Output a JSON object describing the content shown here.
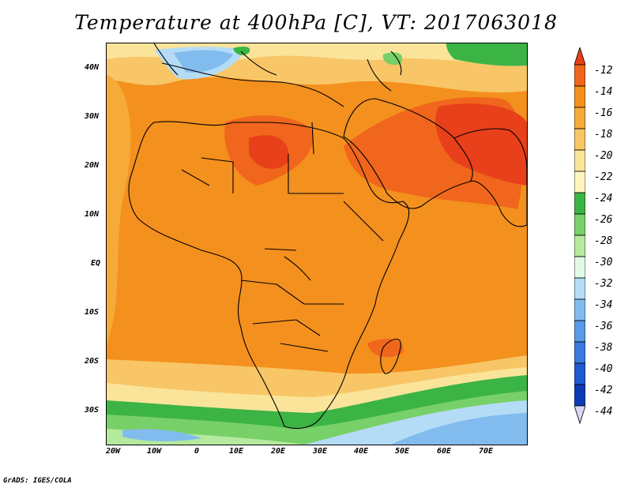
{
  "title": "Temperature at 400hPa [C], VT: 2017063018",
  "footer": "GrADS: IGES/COLA",
  "map": {
    "projection": "latlon",
    "lon_range": [
      -22,
      80
    ],
    "lat_range": [
      -37,
      45
    ],
    "lon_ticks": [
      "20W",
      "10W",
      "0",
      "10E",
      "20E",
      "30E",
      "40E",
      "50E",
      "60E",
      "70E"
    ],
    "lat_ticks": [
      "40N",
      "30N",
      "20N",
      "10N",
      "EQ",
      "10S",
      "20S",
      "30S"
    ]
  },
  "colorbar": {
    "levels": [
      "-12",
      "-14",
      "-16",
      "-18",
      "-20",
      "-22",
      "-24",
      "-26",
      "-28",
      "-30",
      "-32",
      "-34",
      "-36",
      "-38",
      "-40",
      "-42",
      "-44"
    ],
    "colors": [
      "#e8401a",
      "#f0661c",
      "#f4901e",
      "#f6aa38",
      "#f8c666",
      "#fae49a",
      "#fff5c0",
      "#3cb445",
      "#78d068",
      "#b4ea9e",
      "#e0fae6",
      "#b4dcf6",
      "#82bcee",
      "#5a9ae6",
      "#3a7ade",
      "#1e5ad0",
      "#0c3cb4",
      "#0a148c"
    ],
    "top_arrow_color": "#e8401a",
    "bottom_arrow_color": "#d8d8f4"
  }
}
